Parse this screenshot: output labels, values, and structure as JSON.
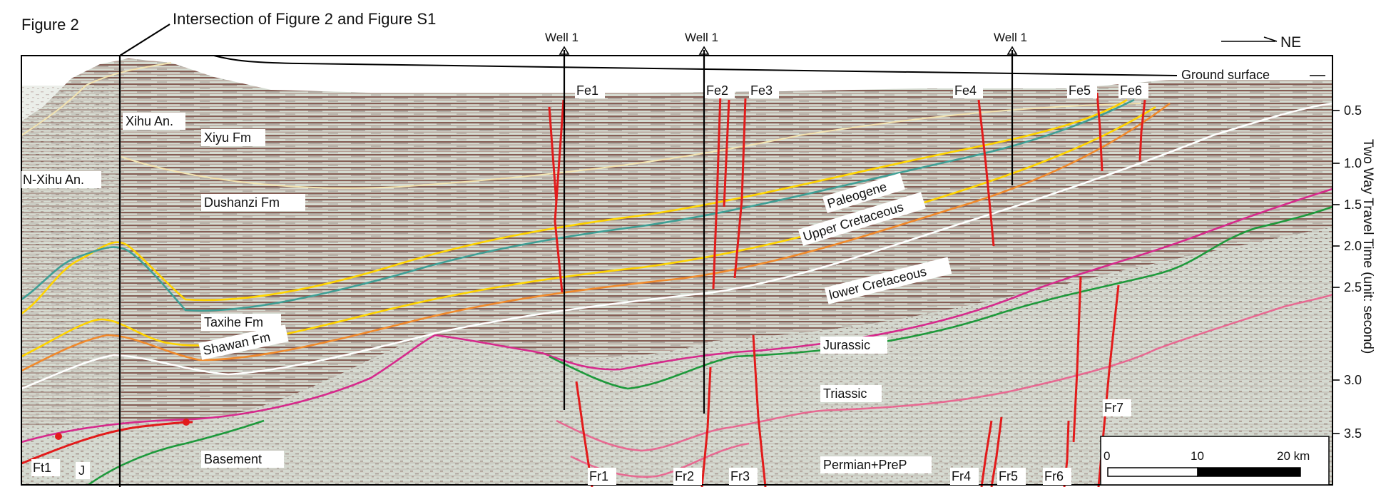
{
  "figure_label": "Figure 2",
  "intersection_label": "Intersection of Figure 2 and Figure S1",
  "north_arrow_label": "NE",
  "ground_surface_label": "Ground surface",
  "wells": [
    {
      "label": "Well 1"
    },
    {
      "label": "Well 1"
    },
    {
      "label": "Well 1"
    }
  ],
  "axis": {
    "title": "Two Way Travel Time (unit: second)",
    "ticks": [
      "0.5",
      "1.0",
      "1.5",
      "2.0",
      "2.5",
      "3.0",
      "3.5"
    ]
  },
  "scale_bar": {
    "labels": [
      "0",
      "10",
      "20 km"
    ]
  },
  "anticlines": [
    "Xihu An.",
    "N-Xihu An."
  ],
  "formations": [
    "Xiyu Fm",
    "Dushanzi Fm",
    "Taxihe Fm",
    "Shawan Fm",
    "Basement",
    "J"
  ],
  "units": [
    "Paleogene",
    "Upper Cretaceous",
    "lower Cretaceous",
    "Jurassic",
    "Triassic",
    "Permian+PreP"
  ],
  "faults_upper": [
    "Fe1",
    "Fe2",
    "Fe3",
    "Fe4",
    "Fe5",
    "Fe6"
  ],
  "faults_lower": [
    "Fr1",
    "Fr2",
    "Fr3",
    "Fr4",
    "Fr5",
    "Fr6",
    "Fr7",
    "Ft1"
  ],
  "colors": {
    "horizon_cream": "#f3e3b0",
    "horizon_yellow": "#ffd400",
    "horizon_teal": "#3f9f95",
    "horizon_orange": "#f08a2c",
    "horizon_white": "#ffffff",
    "horizon_magenta": "#d62a8c",
    "horizon_green": "#1e9a3c",
    "horizon_pink": "#e76a92",
    "fault_red": "#e21b1b",
    "seismic_dark": "#5a2a25",
    "seismic_light": "#d7ddd4"
  }
}
